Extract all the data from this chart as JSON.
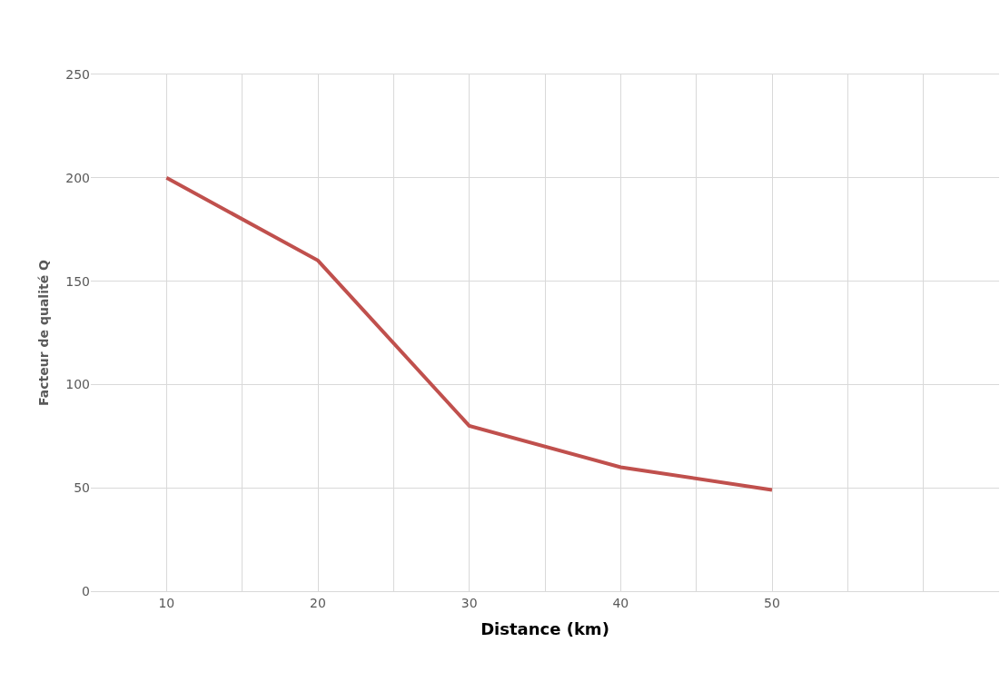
{
  "chart_data": {
    "type": "line",
    "xlabel": "Distance (km)",
    "ylabel": "Facteur de qualité Q",
    "x": [
      10,
      20,
      30,
      40,
      50
    ],
    "series": [
      {
        "color": "#c0504d",
        "values": [
          200,
          160,
          80,
          60,
          49
        ]
      }
    ],
    "xlim": [
      5,
      65
    ],
    "xticks": [
      10,
      {
        "value": 15,
        "label": null
      },
      20,
      {
        "value": 25,
        "label": null
      },
      30,
      {
        "value": 35,
        "label": null
      },
      40,
      {
        "value": 45,
        "label": null
      },
      50,
      {
        "value": 55,
        "label": null
      },
      {
        "value": 60,
        "label": null
      }
    ],
    "ylim": [
      0,
      250
    ],
    "yticks": [
      0,
      50,
      100,
      150,
      200,
      250
    ],
    "grid": true,
    "marker": "none",
    "line_style": "solid"
  }
}
